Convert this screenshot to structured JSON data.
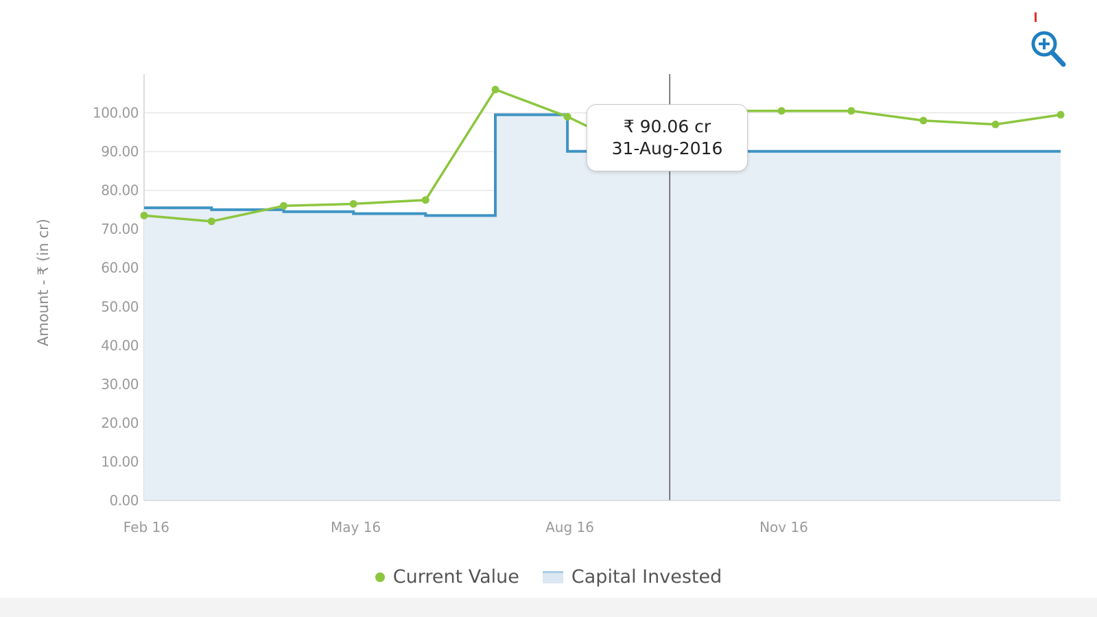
{
  "zoom_icon": "zoom-in-magnifier-icon",
  "tooltip": {
    "value": "₹ 90.06 cr",
    "date": "31-Aug-2016"
  },
  "legend": {
    "current": "Current Value",
    "capital": "Capital Invested"
  },
  "colors": {
    "current": "#8cc63f",
    "capital": "#3f94c4",
    "capital_fill": "#e6eef6",
    "grid": "#e7e7e7"
  },
  "chart_data": {
    "type": "line",
    "title": "",
    "xlabel": "",
    "ylabel": "Amount - ₹ (in cr)",
    "x_ticks": [
      "Feb 16",
      "May 16",
      "Aug 16",
      "Nov 16"
    ],
    "y_ticks": [
      "0.00",
      "10.00",
      "20.00",
      "30.00",
      "40.00",
      "50.00",
      "60.00",
      "70.00",
      "80.00",
      "90.00",
      "100.00"
    ],
    "ylim": [
      0,
      110
    ],
    "grid": true,
    "legend_position": "bottom",
    "series": [
      {
        "name": "Current Value",
        "kind": "line",
        "x": [
          "2016-01-31",
          "2016-02-29",
          "2016-03-31",
          "2016-04-30",
          "2016-05-31",
          "2016-06-30",
          "2016-07-31",
          "2016-08-31",
          "2016-09-30",
          "2016-10-31",
          "2016-11-30",
          "2016-12-31",
          "2017-01-31",
          "2017-02-28"
        ],
        "values": [
          73.5,
          72.0,
          76.0,
          76.5,
          77.5,
          106.0,
          99.0,
          90.06,
          100.5,
          100.5,
          100.5,
          98.0,
          97.0,
          99.5
        ]
      },
      {
        "name": "Capital Invested",
        "kind": "step-area",
        "x": [
          "2016-01-31",
          "2016-02-29",
          "2016-03-31",
          "2016-04-30",
          "2016-05-31",
          "2016-06-30",
          "2016-07-31",
          "2016-08-31",
          "2016-09-30",
          "2016-10-31",
          "2016-11-30",
          "2016-12-31",
          "2017-01-31",
          "2017-02-28"
        ],
        "values": [
          75.5,
          75.0,
          74.5,
          74.0,
          73.5,
          99.5,
          90.06,
          90.06,
          90.06,
          90.06,
          90.06,
          90.06,
          90.06,
          90.06
        ]
      }
    ],
    "crosshair_x": "2016-08-31"
  }
}
